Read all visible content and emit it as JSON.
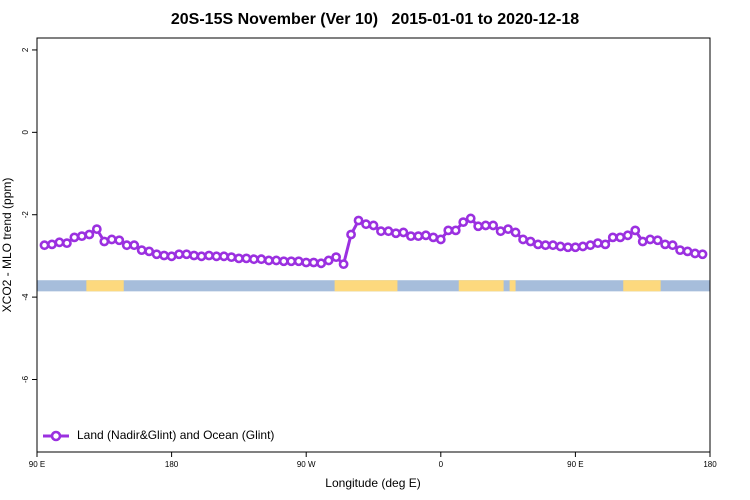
{
  "chart_data": {
    "type": "line",
    "title": "20S-15S November (Ver 10)   2015-01-01 to 2020-12-18",
    "xlabel": "Longitude (deg E)",
    "ylabel": "XCO2 - MLO trend (ppm)",
    "xlim": [
      90,
      540
    ],
    "xticks": [
      {
        "value": 90,
        "label": "90 E"
      },
      {
        "value": 180,
        "label": "180"
      },
      {
        "value": 270,
        "label": "90 W"
      },
      {
        "value": 360,
        "label": "0"
      },
      {
        "value": 450,
        "label": "90 E"
      },
      {
        "value": 540,
        "label": "180"
      }
    ],
    "ylim": [
      -7.76,
      2.29
    ],
    "yticks": [
      -6,
      -4,
      -2,
      0,
      2
    ],
    "legend": "bottom-left",
    "band": {
      "ylim": [
        -3.86,
        -3.59
      ],
      "ocean_color": "#a6bddb",
      "land_color": "#fdd97e",
      "land": [
        [
          123,
          148
        ],
        [
          289,
          331
        ],
        [
          372,
          402
        ],
        [
          406,
          410
        ],
        [
          482,
          507
        ]
      ]
    },
    "series": [
      {
        "name": "Land (Nadir&Glint) and Ocean (Glint)",
        "color": "#9b30e0",
        "x": [
          95,
          100,
          105,
          110,
          115,
          120,
          125,
          130,
          135,
          140,
          145,
          150,
          155,
          160,
          165,
          170,
          175,
          180,
          185,
          190,
          195,
          200,
          205,
          210,
          215,
          220,
          225,
          230,
          235,
          240,
          245,
          250,
          255,
          260,
          265,
          270,
          275,
          280,
          285,
          290,
          295,
          300,
          305,
          310,
          315,
          320,
          325,
          330,
          335,
          340,
          345,
          350,
          355,
          360,
          365,
          370,
          375,
          380,
          385,
          390,
          395,
          400,
          405,
          410,
          415,
          420,
          425,
          430,
          435,
          440,
          445,
          450,
          455,
          460,
          465,
          470,
          475,
          480,
          485,
          490,
          495,
          500,
          505,
          510,
          515,
          520,
          525,
          530,
          535
        ],
        "values": [
          -2.74,
          -2.72,
          -2.67,
          -2.69,
          -2.55,
          -2.52,
          -2.48,
          -2.35,
          -2.65,
          -2.6,
          -2.62,
          -2.74,
          -2.74,
          -2.86,
          -2.89,
          -2.96,
          -2.99,
          -3.01,
          -2.96,
          -2.96,
          -2.99,
          -3.01,
          -2.99,
          -3.01,
          -3.01,
          -3.03,
          -3.06,
          -3.06,
          -3.08,
          -3.08,
          -3.11,
          -3.11,
          -3.13,
          -3.13,
          -3.13,
          -3.16,
          -3.16,
          -3.18,
          -3.11,
          -3.03,
          -3.2,
          -2.48,
          -2.14,
          -2.23,
          -2.26,
          -2.4,
          -2.4,
          -2.45,
          -2.43,
          -2.52,
          -2.52,
          -2.5,
          -2.55,
          -2.6,
          -2.38,
          -2.38,
          -2.18,
          -2.09,
          -2.28,
          -2.26,
          -2.26,
          -2.4,
          -2.35,
          -2.43,
          -2.6,
          -2.65,
          -2.72,
          -2.74,
          -2.74,
          -2.77,
          -2.79,
          -2.79,
          -2.77,
          -2.74,
          -2.69,
          -2.72,
          -2.55,
          -2.55,
          -2.5,
          -2.38,
          -2.65,
          -2.6,
          -2.62,
          -2.72,
          -2.74,
          -2.86,
          -2.89,
          -2.94,
          -2.96
        ]
      }
    ]
  }
}
